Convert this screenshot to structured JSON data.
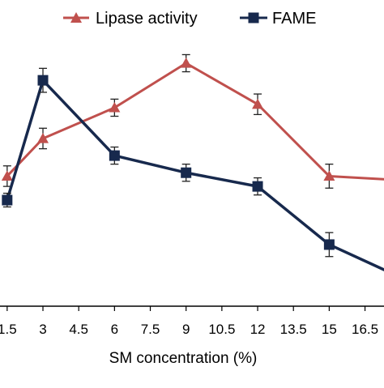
{
  "chart_data": {
    "type": "line",
    "title": "",
    "xlabel": "SM concentration (%)",
    "ylabel": "",
    "x_tick_labels": [
      "1.5",
      "3",
      "4.5",
      "6",
      "7.5",
      "9",
      "10.5",
      "12",
      "13.5",
      "15",
      "16.5"
    ],
    "xlim": [
      1.2,
      17.5
    ],
    "grid": false,
    "legend_position": "top",
    "series": [
      {
        "name": "Lipase activity",
        "color": "#c0504d",
        "marker": "triangle",
        "x": [
          1.5,
          3,
          6,
          9,
          12,
          15,
          17.5
        ],
        "y": [
          0.43,
          0.54,
          0.63,
          0.76,
          0.64,
          0.43,
          0.42
        ],
        "error": [
          0.03,
          0.03,
          0.025,
          0.025,
          0.03,
          0.035,
          0
        ]
      },
      {
        "name": "FAME",
        "color": "#17294d",
        "marker": "square",
        "x": [
          1.5,
          3,
          6,
          9,
          12,
          15,
          17.5
        ],
        "y": [
          0.36,
          0.71,
          0.49,
          0.44,
          0.4,
          0.23,
          0.15
        ],
        "error": [
          0.02,
          0.035,
          0.025,
          0.025,
          0.025,
          0.035,
          0
        ]
      }
    ]
  }
}
